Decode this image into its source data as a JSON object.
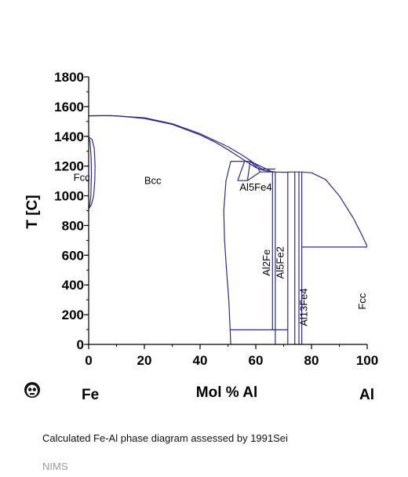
{
  "chart_data": {
    "type": "line",
    "title": "",
    "xlabel": "Mol % Al",
    "ylabel": "T [C]",
    "xlim": [
      0,
      100
    ],
    "ylim": [
      0,
      1800
    ],
    "xticks": [
      0,
      20,
      40,
      60,
      80,
      100
    ],
    "yticks": [
      0,
      200,
      400,
      600,
      800,
      1000,
      1200,
      1400,
      1600,
      1800
    ],
    "x_minor_step": 10,
    "y_minor_step": 100,
    "grid": false,
    "line_color": "#2b2b8f",
    "boundaries": [
      {
        "points": [
          [
            0,
            1538
          ],
          [
            5,
            1540
          ],
          [
            10,
            1538
          ],
          [
            20,
            1520
          ],
          [
            30,
            1480
          ],
          [
            40,
            1410
          ],
          [
            45,
            1365
          ],
          [
            50,
            1310
          ],
          [
            55,
            1250
          ],
          [
            60,
            1190
          ],
          [
            63,
            1170
          ],
          [
            67,
            1160
          ],
          [
            70,
            1158
          ],
          [
            73,
            1160
          ],
          [
            76,
            1160
          ]
        ]
      },
      {
        "points": [
          [
            0,
            1538
          ],
          [
            8,
            1539
          ],
          [
            20,
            1525
          ],
          [
            30,
            1485
          ],
          [
            40,
            1418
          ],
          [
            50,
            1330
          ],
          [
            55,
            1275
          ],
          [
            58,
            1238
          ],
          [
            61,
            1195
          ],
          [
            63,
            1170
          ],
          [
            66,
            1160
          ]
        ]
      },
      {
        "points": [
          [
            0,
            1394
          ],
          [
            1.2,
            1380
          ],
          [
            2,
            1320
          ],
          [
            2.3,
            1200
          ],
          [
            2.2,
            1100
          ],
          [
            1.8,
            1000
          ],
          [
            1,
            940
          ],
          [
            0,
            912
          ]
        ]
      },
      {
        "points": [
          [
            0,
            1394
          ],
          [
            0.5,
            1360
          ],
          [
            0.9,
            1250
          ],
          [
            1,
            1150
          ],
          [
            0.8,
            1000
          ],
          [
            0.4,
            940
          ],
          [
            0,
            912
          ]
        ]
      },
      {
        "points": [
          [
            51,
            1232
          ],
          [
            58,
            1232
          ],
          [
            66,
            1160
          ],
          [
            67,
            1160
          ]
        ]
      },
      {
        "points": [
          [
            51,
            1232
          ],
          [
            49.3,
            1100
          ],
          [
            48.5,
            900
          ],
          [
            48.8,
            700
          ],
          [
            49.5,
            500
          ],
          [
            50.3,
            300
          ],
          [
            50.8,
            100
          ],
          [
            51,
            0
          ]
        ]
      },
      {
        "points": [
          [
            53.5,
            1102
          ],
          [
            56,
            1232
          ]
        ]
      },
      {
        "points": [
          [
            53.5,
            1102
          ],
          [
            57,
            1102
          ],
          [
            61.5,
            1160
          ],
          [
            67,
            1160
          ]
        ]
      },
      {
        "points": [
          [
            57,
            1102
          ],
          [
            58,
            1232
          ]
        ]
      },
      {
        "points": [
          [
            58,
            1232
          ],
          [
            61,
            1180
          ],
          [
            61.5,
            1160
          ]
        ]
      },
      {
        "points": [
          [
            61,
            1180
          ],
          [
            67,
            1180
          ]
        ]
      },
      {
        "points": [
          [
            51,
            98
          ],
          [
            71.5,
            98
          ]
        ]
      },
      {
        "points": [
          [
            66,
            98
          ],
          [
            66,
            1160
          ]
        ]
      },
      {
        "points": [
          [
            67,
            1160
          ],
          [
            67,
            0
          ]
        ]
      },
      {
        "points": [
          [
            71.5,
            1160
          ],
          [
            71.5,
            0
          ]
        ]
      },
      {
        "points": [
          [
            74,
            1160
          ],
          [
            74,
            0
          ]
        ]
      },
      {
        "points": [
          [
            75.5,
            1160
          ],
          [
            75.5,
            0
          ]
        ]
      },
      {
        "points": [
          [
            76.5,
            1160
          ],
          [
            76.5,
            0
          ]
        ]
      },
      {
        "points": [
          [
            76.5,
            655
          ],
          [
            100,
            655
          ]
        ]
      },
      {
        "points": [
          [
            76,
            1160
          ],
          [
            80,
            1155
          ],
          [
            85,
            1110
          ],
          [
            90,
            1000
          ],
          [
            95,
            850
          ],
          [
            98,
            740
          ],
          [
            100,
            660
          ]
        ]
      }
    ],
    "region_labels": [
      {
        "text": "Fcc",
        "x": -2.5,
        "y": 1100,
        "rotate": false
      },
      {
        "text": "Bcc",
        "x": 23,
        "y": 1080,
        "rotate": false
      },
      {
        "text": "Al5Fe4",
        "x": 60,
        "y": 1035,
        "rotate": false
      },
      {
        "text": "Al2Fe",
        "x": 65,
        "y": 550,
        "rotate": true
      },
      {
        "text": "Al5Fe2",
        "x": 70,
        "y": 550,
        "rotate": true
      },
      {
        "text": "Al13Fe4",
        "x": 78.5,
        "y": 250,
        "rotate": true
      },
      {
        "text": "Fcc",
        "x": 99.5,
        "y": 290,
        "rotate": true
      }
    ]
  },
  "elements": {
    "left": "Fe",
    "right": "Al"
  },
  "caption": "Calculated Fe-Al phase diagram assessed by 1991Sei",
  "source": "NIMS",
  "icons": {
    "logo": "skull-face-icon"
  }
}
